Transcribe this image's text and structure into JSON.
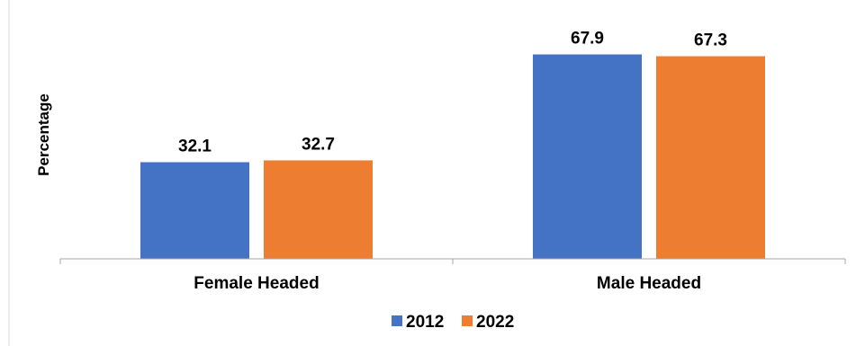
{
  "chart_data": {
    "type": "bar",
    "title": "",
    "xlabel": "",
    "ylabel": "Percentage",
    "categories": [
      "Female Headed",
      "Male Headed"
    ],
    "series": [
      {
        "name": "2012",
        "values": [
          32.1,
          67.9
        ],
        "labels": [
          "32.1",
          "67.9"
        ],
        "color": "#4472C4"
      },
      {
        "name": "2022",
        "values": [
          32.7,
          67.3
        ],
        "labels": [
          "32.7",
          "67.3"
        ],
        "color": "#ED7D31"
      }
    ],
    "ylim": [
      0,
      80
    ],
    "grid": false,
    "legend_position": "bottom"
  }
}
